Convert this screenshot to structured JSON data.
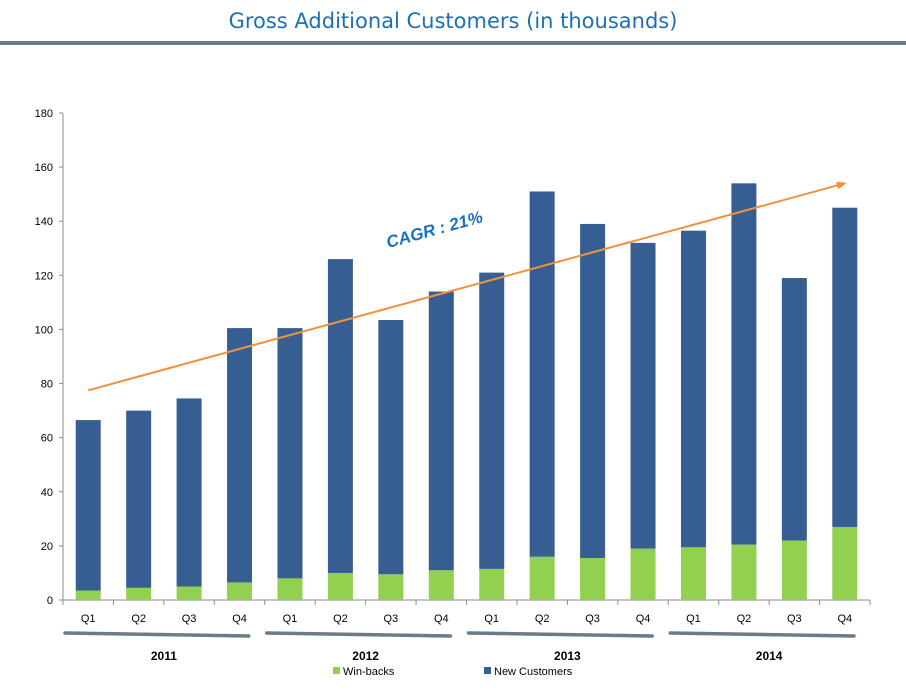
{
  "page": {
    "title": "Gross Additional Customers (in thousands)"
  },
  "chart_data": {
    "type": "bar",
    "stacked": true,
    "categories": [
      "Q1",
      "Q2",
      "Q3",
      "Q4",
      "Q1",
      "Q2",
      "Q3",
      "Q4",
      "Q1",
      "Q2",
      "Q3",
      "Q4",
      "Q1",
      "Q2",
      "Q3",
      "Q4"
    ],
    "years": [
      {
        "label": "2011",
        "start": 0,
        "end": 3
      },
      {
        "label": "2012",
        "start": 4,
        "end": 7
      },
      {
        "label": "2013",
        "start": 8,
        "end": 11
      },
      {
        "label": "2014",
        "start": 12,
        "end": 15
      }
    ],
    "series": [
      {
        "name": "Win-backs",
        "color": "#92d050",
        "values": [
          3.5,
          4.5,
          5,
          6.5,
          8,
          10,
          9.5,
          11,
          11.5,
          16,
          15.5,
          19,
          19.5,
          20.5,
          22,
          27
        ]
      },
      {
        "name": "New Customers",
        "color": "#375e93",
        "values": [
          63,
          65.5,
          69.5,
          94,
          92.5,
          116,
          94,
          103,
          109.5,
          135,
          123.5,
          113,
          117,
          133.5,
          97,
          118
        ]
      }
    ],
    "totals": [
      66.5,
      70,
      74.5,
      100.5,
      100.5,
      126,
      103.5,
      114,
      121,
      151,
      139,
      132,
      136.5,
      154,
      119,
      145
    ],
    "ylim": [
      0,
      180
    ],
    "yticks": [
      0,
      20,
      40,
      60,
      80,
      100,
      120,
      140,
      160,
      180
    ],
    "trend": {
      "label": "CAGR : 21%",
      "color": "#f0923c",
      "from": {
        "category_index": 0,
        "value": 77.5
      },
      "to": {
        "category_index": 15,
        "value": 154
      }
    },
    "legend_position": "bottom"
  }
}
